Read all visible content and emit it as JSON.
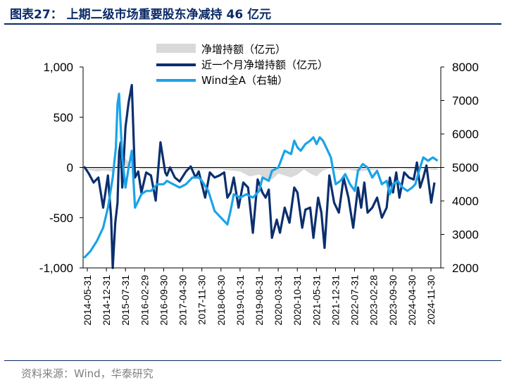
{
  "title": "图表27：  上期二级市场重要股东净减持 46 亿元",
  "source": "资料来源：Wind，华泰研究",
  "colors": {
    "title": "#0b2a66",
    "net": "#d9d9d9",
    "net_monthly": "#0b2f6e",
    "wind": "#1aa3e8"
  },
  "chart_data": {
    "type": "line",
    "legend": [
      "净增持额（亿元）",
      "近一个月净增持额（亿元）",
      "Wind全A（右轴）"
    ],
    "y_left": {
      "ticks": [
        "1,000",
        "500",
        "0",
        "-500",
        "-1,000"
      ],
      "range": [
        -1000,
        1000
      ]
    },
    "y_right": {
      "ticks": [
        "8000",
        "7000",
        "6000",
        "5000",
        "4000",
        "3000",
        "2000"
      ],
      "range": [
        2000,
        8000
      ]
    },
    "x_ticks": [
      "2014-05-31",
      "2014-12-31",
      "2015-07-31",
      "2016-02-29",
      "2016-09-30",
      "2017-04-30",
      "2017-11-30",
      "2018-06-30",
      "2019-01-31",
      "2019-08-31",
      "2020-03-31",
      "2020-10-31",
      "2021-05-31",
      "2021-12-31",
      "2022-07-31",
      "2023-02-28",
      "2023-09-30",
      "2024-04-30",
      "2024-11-30"
    ],
    "x_range": [
      2014.37,
      2025.6
    ],
    "series": [
      {
        "name": "净增持额（亿元）",
        "axis": "left",
        "style": "area",
        "x": [
          2014.4,
          2014.8,
          2015.0,
          2015.3,
          2015.5,
          2015.7,
          2015.9,
          2016.2,
          2016.6,
          2017.0,
          2017.4,
          2017.8,
          2018.2,
          2018.6,
          2019.0,
          2019.3,
          2019.6,
          2019.9,
          2020.1,
          2020.3,
          2020.5,
          2020.7,
          2020.9,
          2021.1,
          2021.3,
          2021.5,
          2021.7,
          2021.9,
          2022.1,
          2022.4,
          2022.7,
          2023.0,
          2023.3,
          2023.6,
          2024.0,
          2024.3,
          2024.6,
          2025.0,
          2025.5
        ],
        "values": [
          -20,
          -40,
          -30,
          -40,
          60,
          90,
          20,
          -20,
          -15,
          -25,
          -20,
          -25,
          -20,
          -15,
          -30,
          -40,
          -90,
          -70,
          -110,
          -120,
          -60,
          -80,
          -100,
          -70,
          -20,
          -60,
          -90,
          -30,
          -10,
          -25,
          -20,
          -40,
          -30,
          -20,
          -15,
          -10,
          -20,
          -15,
          -25
        ]
      },
      {
        "name": "近一个月净增持额（亿元）",
        "axis": "left",
        "style": "line",
        "x": [
          2014.4,
          2014.55,
          2014.7,
          2014.85,
          2015.0,
          2015.15,
          2015.25,
          2015.3,
          2015.38,
          2015.45,
          2015.5,
          2015.55,
          2015.6,
          2015.7,
          2015.8,
          2015.9,
          2016.0,
          2016.1,
          2016.2,
          2016.35,
          2016.5,
          2016.65,
          2016.8,
          2016.95,
          2017.0,
          2017.1,
          2017.25,
          2017.4,
          2017.6,
          2017.75,
          2017.9,
          2018.0,
          2018.2,
          2018.35,
          2018.5,
          2018.65,
          2018.8,
          2018.9,
          2019.0,
          2019.1,
          2019.25,
          2019.4,
          2019.55,
          2019.7,
          2019.85,
          2020.0,
          2020.1,
          2020.2,
          2020.3,
          2020.45,
          2020.55,
          2020.7,
          2020.85,
          2021.0,
          2021.1,
          2021.25,
          2021.35,
          2021.5,
          2021.6,
          2021.75,
          2021.85,
          2021.95,
          2022.1,
          2022.25,
          2022.4,
          2022.55,
          2022.7,
          2022.85,
          2023.0,
          2023.1,
          2023.2,
          2023.3,
          2023.45,
          2023.6,
          2023.75,
          2023.9,
          2024.0,
          2024.1,
          2024.2,
          2024.3,
          2024.45,
          2024.6,
          2024.75,
          2024.85,
          2024.95,
          2025.05,
          2025.15,
          2025.3,
          2025.4
        ],
        "values": [
          10,
          -60,
          -150,
          -100,
          -400,
          -80,
          -500,
          -1000,
          -550,
          -350,
          150,
          250,
          -200,
          400,
          650,
          820,
          -100,
          -40,
          -250,
          -50,
          -80,
          -330,
          250,
          -50,
          -80,
          0,
          -100,
          -140,
          -40,
          10,
          -100,
          -40,
          -300,
          -50,
          -100,
          -80,
          -50,
          -300,
          -250,
          -100,
          -400,
          -150,
          -200,
          -650,
          -120,
          -250,
          -300,
          -220,
          -700,
          -520,
          -650,
          -400,
          -550,
          -200,
          -250,
          -600,
          -420,
          -400,
          -700,
          -300,
          -450,
          -800,
          -80,
          -350,
          -450,
          -100,
          -300,
          -600,
          -200,
          -400,
          -150,
          -450,
          -400,
          -300,
          -500,
          -400,
          -100,
          -250,
          -50,
          -300,
          -50,
          -100,
          -120,
          50,
          -200,
          -100,
          20,
          -350,
          -150
        ]
      },
      {
        "name": "Wind全A（右轴）",
        "axis": "right",
        "style": "line",
        "x": [
          2014.4,
          2014.6,
          2014.8,
          2015.0,
          2015.15,
          2015.3,
          2015.4,
          2015.45,
          2015.5,
          2015.6,
          2015.7,
          2015.8,
          2015.9,
          2016.0,
          2016.1,
          2016.2,
          2016.35,
          2016.5,
          2016.7,
          2016.9,
          2017.0,
          2017.2,
          2017.4,
          2017.6,
          2017.8,
          2018.0,
          2018.1,
          2018.3,
          2018.5,
          2018.7,
          2018.9,
          2019.0,
          2019.1,
          2019.3,
          2019.5,
          2019.7,
          2019.9,
          2020.0,
          2020.2,
          2020.3,
          2020.5,
          2020.7,
          2020.9,
          2021.0,
          2021.1,
          2021.2,
          2021.35,
          2021.5,
          2021.6,
          2021.7,
          2021.8,
          2021.9,
          2022.0,
          2022.15,
          2022.3,
          2022.45,
          2022.6,
          2022.75,
          2022.9,
          2023.0,
          2023.15,
          2023.3,
          2023.45,
          2023.6,
          2023.75,
          2023.9,
          2024.0,
          2024.1,
          2024.25,
          2024.4,
          2024.55,
          2024.7,
          2024.8,
          2024.95,
          2025.05,
          2025.2,
          2025.35,
          2025.5
        ],
        "values": [
          2300,
          2500,
          2800,
          3200,
          3800,
          4700,
          5600,
          6900,
          7200,
          5300,
          4400,
          5000,
          5500,
          3800,
          4000,
          4200,
          4300,
          4300,
          4500,
          4500,
          4600,
          4500,
          4400,
          4500,
          4700,
          4700,
          4600,
          4300,
          3700,
          3500,
          3300,
          3700,
          4200,
          4100,
          4200,
          4100,
          4300,
          4700,
          4600,
          4900,
          5000,
          5500,
          5400,
          5800,
          5600,
          5500,
          5700,
          5800,
          5900,
          5700,
          5900,
          5800,
          5600,
          5300,
          4500,
          4600,
          4800,
          4500,
          4300,
          4900,
          5100,
          5000,
          4700,
          4900,
          4500,
          4600,
          4200,
          4500,
          4600,
          4400,
          4300,
          4400,
          4500,
          5000,
          5300,
          5200,
          5300,
          5200
        ]
      }
    ]
  }
}
